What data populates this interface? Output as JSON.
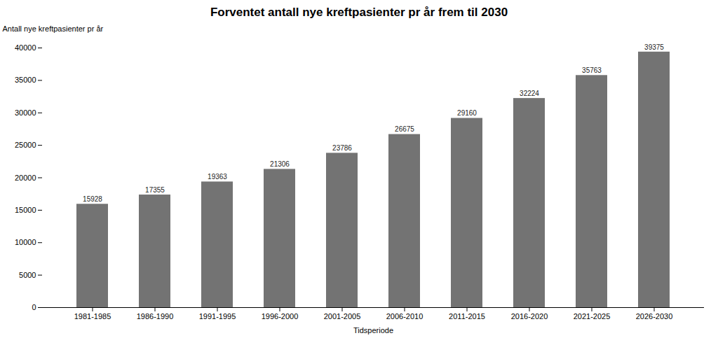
{
  "chart_data": {
    "type": "bar",
    "title": "Forventet antall nye kreftpasienter pr år frem til 2030",
    "categories": [
      "1981-1985",
      "1986-1990",
      "1991-1995",
      "1996-2000",
      "2001-2005",
      "2006-2010",
      "2011-2015",
      "2016-2020",
      "2021-2025",
      "2026-2030"
    ],
    "values": [
      15928,
      17355,
      19363,
      21306,
      23786,
      26675,
      29160,
      32224,
      35763,
      39375
    ],
    "color": "#737373",
    "xlabel": "Tidsperiode",
    "ylabel": "Antall nye kreftpasienter pr år",
    "ylim": [
      0,
      40000
    ],
    "yticks": [
      0,
      5000,
      10000,
      15000,
      20000,
      25000,
      30000,
      35000,
      40000
    ],
    "data_labels": true,
    "grid": false
  }
}
